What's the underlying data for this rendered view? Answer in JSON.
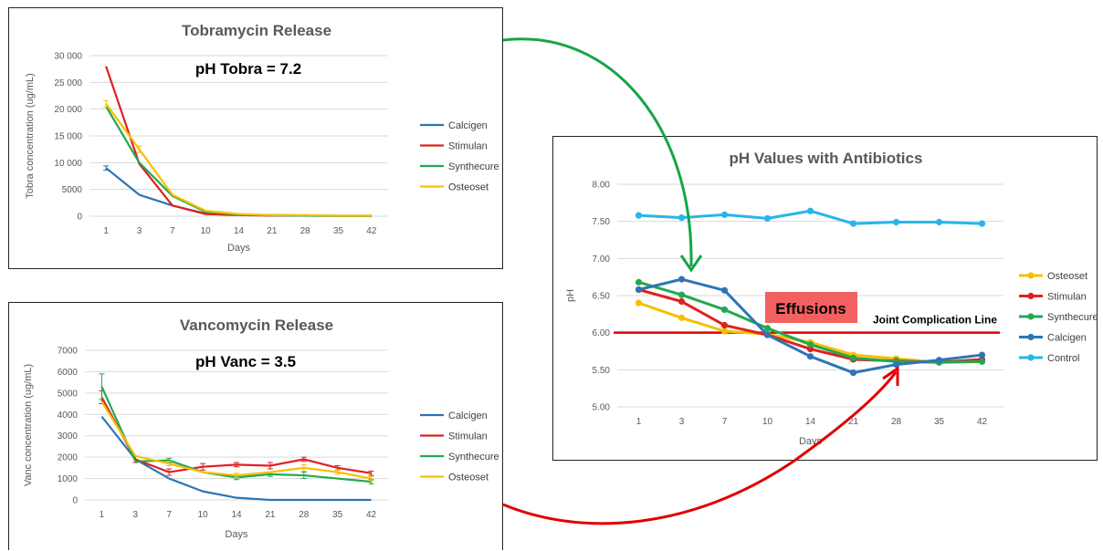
{
  "colors": {
    "calcigen": "#2e75b6",
    "stimulan": "#e02020",
    "synthecure": "#23a84f",
    "osteoset": "#f5c000",
    "control": "#29b5e8",
    "effusions_bg": "#f26060",
    "threshold": "#e00000",
    "arrow_green": "#16a548",
    "arrow_red": "#e00000"
  },
  "chart_data": [
    {
      "id": "tobra",
      "type": "line",
      "title": "Tobramycin Release",
      "annotation": "pH Tobra = 7.2",
      "xlabel": "Days",
      "ylabel": "Tobra concentration (ug/mL)",
      "categories": [
        "1",
        "3",
        "7",
        "10",
        "14",
        "21",
        "28",
        "35",
        "42"
      ],
      "ylim": [
        0,
        30000
      ],
      "yticks": [
        "0",
        "5000",
        "10 000",
        "15 000",
        "20 000",
        "25 000",
        "30 000"
      ],
      "ytick_values": [
        0,
        5000,
        10000,
        15000,
        20000,
        25000,
        30000
      ],
      "legend_position": "right",
      "grid": true,
      "series": [
        {
          "name": "Calcigen",
          "color_key": "calcigen",
          "values": [
            9000,
            4000,
            2000,
            500,
            300,
            200,
            150,
            100,
            100
          ],
          "err": [
            400,
            0,
            0,
            0,
            0,
            0,
            0,
            0,
            0
          ]
        },
        {
          "name": "Stimulan",
          "color_key": "stimulan",
          "values": [
            28000,
            9800,
            2000,
            400,
            200,
            100,
            100,
            50,
            50
          ],
          "err": [
            0,
            0,
            0,
            0,
            0,
            0,
            0,
            0,
            0
          ]
        },
        {
          "name": "Synthecure",
          "color_key": "synthecure",
          "values": [
            20500,
            10000,
            3800,
            800,
            300,
            150,
            100,
            50,
            50
          ],
          "err": [
            0,
            0,
            0,
            0,
            0,
            0,
            0,
            0,
            0
          ]
        },
        {
          "name": "Osteoset",
          "color_key": "osteoset",
          "values": [
            21000,
            12500,
            4000,
            1000,
            400,
            200,
            200,
            100,
            100
          ],
          "err": [
            600,
            600,
            0,
            0,
            0,
            0,
            0,
            0,
            0
          ]
        }
      ]
    },
    {
      "id": "vanc",
      "type": "line",
      "title": "Vancomycin Release",
      "annotation": "pH Vanc = 3.5",
      "xlabel": "Days",
      "ylabel": "Vanc concentration (ug/mL)",
      "categories": [
        "1",
        "3",
        "7",
        "10",
        "14",
        "21",
        "28",
        "35",
        "42"
      ],
      "ylim": [
        0,
        7000
      ],
      "yticks": [
        "0",
        "1000",
        "2000",
        "3000",
        "4000",
        "5000",
        "6000",
        "7000"
      ],
      "ytick_values": [
        0,
        1000,
        2000,
        3000,
        4000,
        5000,
        6000,
        7000
      ],
      "legend_position": "right",
      "grid": true,
      "series": [
        {
          "name": "Calcigen",
          "color_key": "calcigen",
          "values": [
            3900,
            1900,
            1000,
            400,
            100,
            0,
            0,
            0,
            0
          ],
          "err": [
            0,
            0,
            0,
            0,
            0,
            0,
            0,
            0,
            0
          ]
        },
        {
          "name": "Stimulan",
          "color_key": "stimulan",
          "values": [
            4800,
            1900,
            1300,
            1550,
            1650,
            1600,
            1900,
            1500,
            1250
          ],
          "err": [
            300,
            150,
            150,
            150,
            100,
            150,
            100,
            100,
            100
          ]
        },
        {
          "name": "Synthecure",
          "color_key": "synthecure",
          "values": [
            5300,
            1800,
            1850,
            1300,
            1050,
            1200,
            1150,
            1000,
            850
          ],
          "err": [
            600,
            0,
            100,
            0,
            100,
            100,
            150,
            0,
            100
          ]
        },
        {
          "name": "Osteoset",
          "color_key": "osteoset",
          "values": [
            4600,
            2050,
            1700,
            1300,
            1150,
            1300,
            1500,
            1300,
            1000
          ],
          "err": [
            0,
            0,
            100,
            0,
            100,
            0,
            150,
            100,
            100
          ]
        }
      ]
    },
    {
      "id": "ph",
      "type": "line",
      "title": "pH Values with Antibiotics",
      "xlabel": "Days",
      "ylabel": "pH",
      "categories": [
        "1",
        "3",
        "7",
        "10",
        "14",
        "21",
        "28",
        "35",
        "42"
      ],
      "ylim": [
        5.0,
        8.0
      ],
      "yticks": [
        "5.00",
        "5.50",
        "6.00",
        "6.50",
        "7.00",
        "7.50",
        "8.00"
      ],
      "ytick_values": [
        5.0,
        5.5,
        6.0,
        6.5,
        7.0,
        7.5,
        8.0
      ],
      "legend_position": "right",
      "grid": true,
      "threshold": {
        "value": 6.0,
        "label": "Joint Complication Line"
      },
      "effusions_label": "Effusions",
      "series": [
        {
          "name": "Osteoset",
          "color_key": "osteoset",
          "values": [
            6.4,
            6.2,
            6.02,
            5.98,
            5.87,
            5.7,
            5.65,
            5.6,
            5.62
          ]
        },
        {
          "name": "Stimulan",
          "color_key": "stimulan",
          "values": [
            6.58,
            6.42,
            6.1,
            5.97,
            5.78,
            5.64,
            5.62,
            5.6,
            5.64
          ]
        },
        {
          "name": "Synthecure",
          "color_key": "synthecure",
          "values": [
            6.68,
            6.51,
            6.31,
            6.06,
            5.84,
            5.66,
            5.61,
            5.6,
            5.61
          ]
        },
        {
          "name": "Calcigen",
          "color_key": "calcigen",
          "values": [
            6.58,
            6.72,
            6.57,
            5.97,
            5.68,
            5.46,
            5.57,
            5.63,
            5.7
          ]
        },
        {
          "name": "Control",
          "color_key": "control",
          "values": [
            7.58,
            7.55,
            7.59,
            7.54,
            7.64,
            7.47,
            7.49,
            7.49,
            7.47
          ]
        }
      ]
    }
  ]
}
